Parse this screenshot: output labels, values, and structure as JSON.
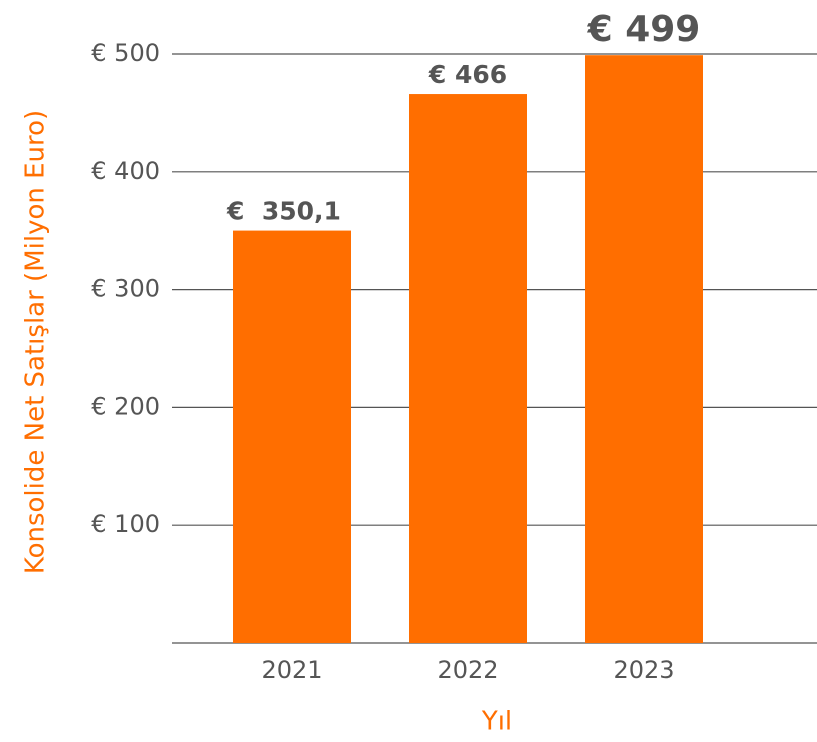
{
  "chart_data": {
    "type": "bar",
    "y_label": "Konsolide Net Satışlar (Milyon Euro)",
    "x_label": "Yıl",
    "categories": [
      "2021",
      "2022",
      "2023"
    ],
    "values": [
      350.1,
      466,
      499
    ],
    "value_labels": [
      "€  350,1",
      "€ 466",
      "€ 499"
    ],
    "color": "#ff6e00",
    "ylim": [
      0,
      500
    ],
    "yticks": [
      {
        "value": 100,
        "label": "€ 100"
      },
      {
        "value": 200,
        "label": "€ 200"
      },
      {
        "value": 300,
        "label": "€ 300"
      },
      {
        "value": 400,
        "label": "€ 400"
      },
      {
        "value": 500,
        "label": "€ 500"
      }
    ],
    "grid": true
  }
}
